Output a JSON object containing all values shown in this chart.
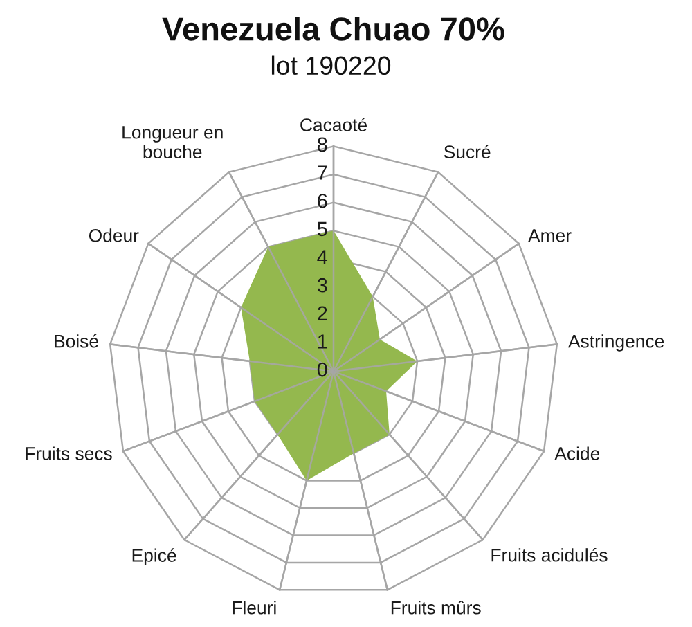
{
  "chart_data": {
    "type": "radar",
    "title": "Venezuela Chuao 70%",
    "subtitle": "lot 190220",
    "categories": [
      "Cacaoté",
      "Sucré",
      "Amer",
      "Astringence",
      "Acide",
      "Fruits acidulés",
      "Fruits mûrs",
      "Fleuri",
      "Epicé",
      "Fruits secs",
      "Boisé",
      "Odeur",
      "Longueur en\nbouche"
    ],
    "series": [
      {
        "color": "#94b84e",
        "values": [
          5,
          3,
          2,
          3,
          2,
          3,
          3,
          4,
          3,
          3,
          3,
          4,
          5
        ]
      }
    ],
    "ylim": [
      0,
      8
    ],
    "yticks": [
      0,
      1,
      2,
      3,
      4,
      5,
      6,
      7,
      8
    ],
    "grid": true
  }
}
